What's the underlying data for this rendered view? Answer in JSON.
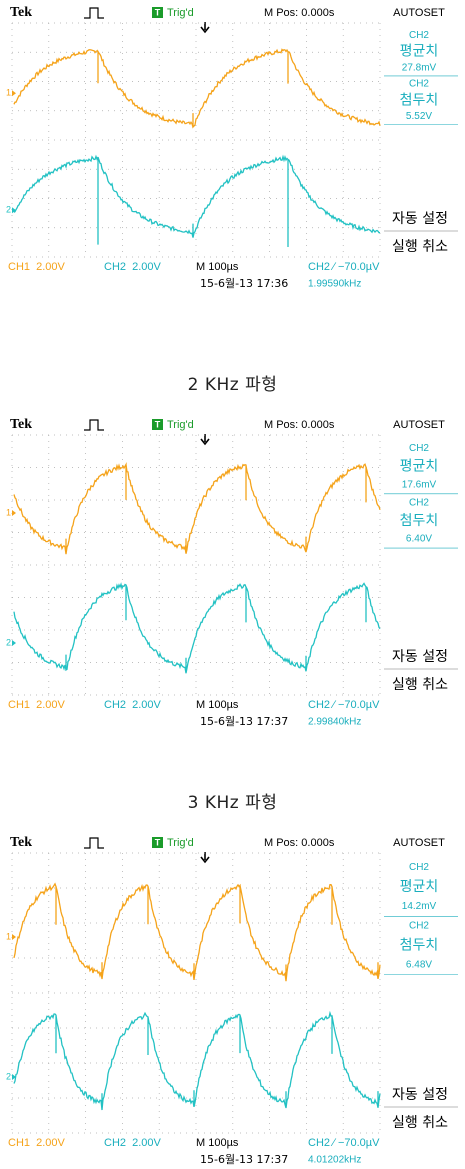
{
  "panels": [
    {
      "top_bar": {
        "brand": "Tek",
        "trigger_icon": "T",
        "trigger": "Trig'd",
        "position": "M Pos: 0.000s",
        "autoset": "AUTOSET"
      },
      "menu": {
        "mean_channel": "CH2",
        "mean_label": "평균치",
        "mean_value": "27.8mV",
        "peak_channel": "CH2",
        "peak_label": "첨두치",
        "peak_value": "5.52V",
        "autoset_label": "자동 설정",
        "undo_label": "실행 취소"
      },
      "channel_markers": [
        "1",
        "2"
      ],
      "bottom": {
        "ch1": "CH1  2.00V",
        "ch2": "CH2  2.00V",
        "timebase": "M 100µs",
        "trigger_level": "CH2 ∕ −70.0µV",
        "timestamp": "15-6월-13 17:36",
        "frequency": "1.99590kHz"
      },
      "caption": "2 KHz  파형"
    },
    {
      "top_bar": {
        "brand": "Tek",
        "trigger_icon": "T",
        "trigger": "Trig'd",
        "position": "M Pos: 0.000s",
        "autoset": "AUTOSET"
      },
      "menu": {
        "mean_channel": "CH2",
        "mean_label": "평균치",
        "mean_value": "17.6mV",
        "peak_channel": "CH2",
        "peak_label": "첨두치",
        "peak_value": "6.40V",
        "autoset_label": "자동 설정",
        "undo_label": "실행 취소"
      },
      "channel_markers": [
        "1",
        "2"
      ],
      "bottom": {
        "ch1": "CH1  2.00V",
        "ch2": "CH2  2.00V",
        "timebase": "M 100µs",
        "trigger_level": "CH2 ∕ −70.0µV",
        "timestamp": "15-6월-13 17:37",
        "frequency": "2.99840kHz"
      },
      "caption": "3 KHz  파형"
    },
    {
      "top_bar": {
        "brand": "Tek",
        "trigger_icon": "T",
        "trigger": "Trig'd",
        "position": "M Pos: 0.000s",
        "autoset": "AUTOSET"
      },
      "menu": {
        "mean_channel": "CH2",
        "mean_label": "평균치",
        "mean_value": "14.2mV",
        "peak_channel": "CH2",
        "peak_label": "첨두치",
        "peak_value": "6.48V",
        "autoset_label": "자동 설정",
        "undo_label": "실행 취소"
      },
      "channel_markers": [
        "1",
        "2"
      ],
      "bottom": {
        "ch1": "CH1  2.00V",
        "ch2": "CH2  2.00V",
        "timebase": "M 100µs",
        "trigger_level": "CH2 ∕ −70.0µV",
        "timestamp": "15-6월-13 17:37",
        "frequency": "4.01202kHz"
      }
    }
  ]
}
